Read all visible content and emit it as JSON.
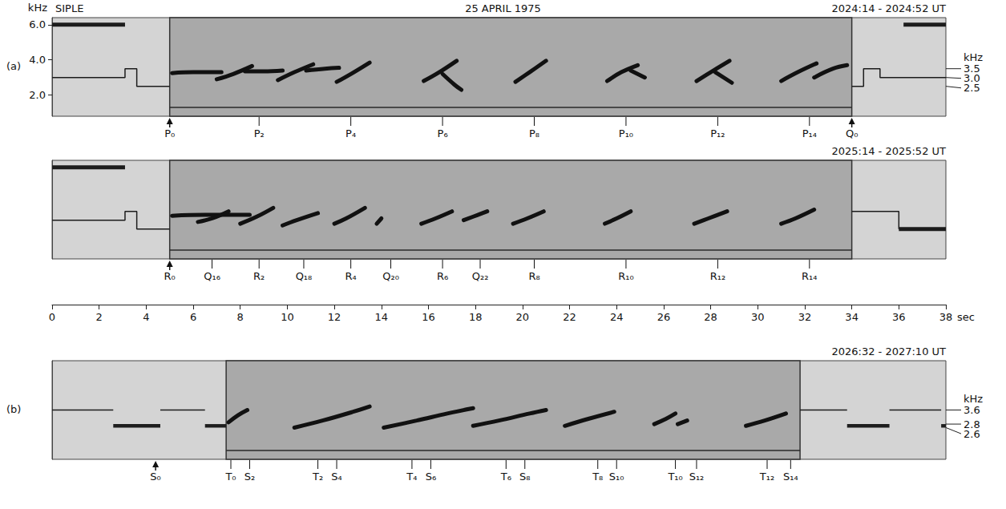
{
  "chart_data": [
    {
      "type": "spectrogram",
      "panel": "(a)",
      "station": "SIPLE",
      "date": "25 APRIL 1975",
      "title": "2024:14 - 2024:52 UT",
      "xlim": [
        0,
        38
      ],
      "ylim": [
        0.8,
        6.4
      ],
      "ylabel": "kHz",
      "tick_labels": "y",
      "yticks": [
        {
          "value": 2,
          "label": "2.0"
        },
        {
          "value": 4,
          "label": "4.0"
        },
        {
          "value": 6,
          "label": "6.0"
        }
      ],
      "freq_unit": "kHz",
      "freq_marks": [
        3.5,
        {
          "value": 3,
          "label": "3.0"
        },
        2.5
      ],
      "active": [
        5.0,
        34.0
      ],
      "floor_line": 1.3,
      "tones": [
        {
          "line_style": "thick",
          "points": [
            [
              0,
              6
            ],
            [
              3.1,
              6
            ]
          ]
        },
        {
          "line_style": "thick",
          "points": [
            [
              36.2,
              6
            ],
            [
              38,
              6
            ]
          ]
        },
        {
          "line_style": "thin",
          "points": [
            [
              0,
              3
            ],
            [
              3.1,
              3
            ],
            [
              3.1,
              3.5
            ],
            [
              3.6,
              3.5
            ],
            [
              3.6,
              2.5
            ],
            [
              5.0,
              2.5
            ]
          ]
        },
        {
          "line_style": "thin",
          "points": [
            [
              34.0,
              2.5
            ],
            [
              34.5,
              2.5
            ],
            [
              34.5,
              3.5
            ],
            [
              35.2,
              3.5
            ],
            [
              35.2,
              3
            ],
            [
              38,
              3
            ]
          ]
        }
      ],
      "bands": [],
      "emissions": [
        [
          [
            5.1,
            3.25
          ],
          [
            6.0,
            3.3
          ],
          [
            7.2,
            3.3
          ]
        ],
        [
          [
            7.0,
            2.9
          ],
          [
            7.7,
            3.2
          ],
          [
            8.5,
            3.65
          ]
        ],
        [
          [
            8.2,
            3.35
          ],
          [
            9.0,
            3.35
          ],
          [
            9.8,
            3.4
          ]
        ],
        [
          [
            9.6,
            2.85
          ],
          [
            10.3,
            3.3
          ],
          [
            11.1,
            3.75
          ]
        ],
        [
          [
            10.8,
            3.4
          ],
          [
            11.6,
            3.5
          ],
          [
            12.2,
            3.55
          ]
        ],
        [
          [
            12.1,
            2.75
          ],
          [
            12.7,
            3.2
          ],
          [
            13.5,
            3.85
          ]
        ],
        [
          [
            15.8,
            2.8
          ],
          [
            16.4,
            3.25
          ],
          [
            17.2,
            3.95
          ]
        ],
        [
          [
            16.6,
            3.2
          ],
          [
            17.1,
            2.6
          ],
          [
            17.4,
            2.3
          ]
        ],
        [
          [
            19.7,
            2.75
          ],
          [
            20.3,
            3.3
          ],
          [
            21.0,
            3.95
          ]
        ],
        [
          [
            23.6,
            2.8
          ],
          [
            24.2,
            3.3
          ],
          [
            24.9,
            3.7
          ]
        ],
        [
          [
            24.6,
            3.4
          ],
          [
            25.2,
            3.0
          ]
        ],
        [
          [
            27.4,
            2.8
          ],
          [
            28.0,
            3.3
          ],
          [
            28.8,
            3.95
          ]
        ],
        [
          [
            28.2,
            3.3
          ],
          [
            28.9,
            2.7
          ]
        ],
        [
          [
            31.0,
            2.8
          ],
          [
            31.7,
            3.3
          ],
          [
            32.5,
            3.8
          ]
        ],
        [
          [
            32.4,
            3.0
          ],
          [
            33.2,
            3.5
          ],
          [
            33.8,
            3.7
          ]
        ]
      ],
      "marks": [
        {
          "label": "P₀",
          "t": 5.0,
          "marker": "arrow"
        },
        {
          "label": "P₂",
          "t": 8.8,
          "marker": "tick"
        },
        {
          "label": "P₄",
          "t": 12.7,
          "marker": "tick"
        },
        {
          "label": "P₆",
          "t": 16.6,
          "marker": "tick"
        },
        {
          "label": "P₈",
          "t": 20.5,
          "marker": "tick"
        },
        {
          "label": "P₁₀",
          "t": 24.4,
          "marker": "tick"
        },
        {
          "label": "P₁₂",
          "t": 28.3,
          "marker": "tick"
        },
        {
          "label": "P₁₄",
          "t": 32.2,
          "marker": "tick"
        },
        {
          "label": "Q₀",
          "t": 34.0,
          "marker": "arrow"
        }
      ]
    },
    {
      "type": "spectrogram",
      "title": "2025:14 - 2025:52 UT",
      "xlim": [
        0,
        38
      ],
      "ylim": [
        0.8,
        6.4
      ],
      "tick_labels": false,
      "active": [
        5.0,
        34.0
      ],
      "floor_line": 1.3,
      "tones": [
        {
          "line_style": "thick",
          "points": [
            [
              0,
              6
            ],
            [
              3.1,
              6
            ]
          ]
        },
        {
          "line_style": "thin",
          "points": [
            [
              0,
              3
            ],
            [
              3.1,
              3
            ],
            [
              3.1,
              3.5
            ],
            [
              3.6,
              3.5
            ],
            [
              3.6,
              2.5
            ],
            [
              5.0,
              2.5
            ]
          ]
        },
        {
          "line_style": "thin",
          "points": [
            [
              34.0,
              3.5
            ],
            [
              36.0,
              3.5
            ],
            [
              36.0,
              2.5
            ]
          ]
        },
        {
          "line_style": "thick",
          "points": [
            [
              36.0,
              2.5
            ],
            [
              38,
              2.5
            ]
          ]
        }
      ],
      "bands": [],
      "emissions": [
        [
          [
            5.1,
            3.25
          ],
          [
            6.5,
            3.3
          ],
          [
            8.4,
            3.3
          ]
        ],
        [
          [
            6.2,
            2.9
          ],
          [
            6.8,
            3.1
          ],
          [
            7.5,
            3.5
          ]
        ],
        [
          [
            8.0,
            2.8
          ],
          [
            8.7,
            3.2
          ],
          [
            9.4,
            3.7
          ]
        ],
        [
          [
            9.8,
            2.7
          ],
          [
            10.4,
            3.0
          ],
          [
            11.3,
            3.4
          ]
        ],
        [
          [
            12.0,
            2.8
          ],
          [
            12.5,
            3.1
          ],
          [
            13.3,
            3.7
          ]
        ],
        [
          [
            13.8,
            2.8
          ],
          [
            14.0,
            3.1
          ]
        ],
        [
          [
            15.7,
            2.8
          ],
          [
            16.3,
            3.1
          ],
          [
            17.0,
            3.5
          ]
        ],
        [
          [
            17.5,
            3.0
          ],
          [
            18.1,
            3.3
          ],
          [
            18.5,
            3.5
          ]
        ],
        [
          [
            19.6,
            2.8
          ],
          [
            20.2,
            3.1
          ],
          [
            20.9,
            3.5
          ]
        ],
        [
          [
            23.5,
            2.8
          ],
          [
            24.0,
            3.1
          ],
          [
            24.6,
            3.5
          ]
        ],
        [
          [
            27.3,
            2.8
          ],
          [
            27.9,
            3.1
          ],
          [
            28.7,
            3.5
          ]
        ],
        [
          [
            31.0,
            2.8
          ],
          [
            31.6,
            3.1
          ],
          [
            32.4,
            3.6
          ]
        ]
      ],
      "marks": [
        {
          "label": "R₀",
          "t": 5.0,
          "marker": "arrow"
        },
        {
          "label": "Q₁₆",
          "t": 6.8,
          "marker": "tick"
        },
        {
          "label": "R₂",
          "t": 8.8,
          "marker": "tick"
        },
        {
          "label": "Q₁₈",
          "t": 10.7,
          "marker": "tick"
        },
        {
          "label": "R₄",
          "t": 12.7,
          "marker": "tick"
        },
        {
          "label": "Q₂₀",
          "t": 14.4,
          "marker": "tick"
        },
        {
          "label": "R₆",
          "t": 16.6,
          "marker": "tick"
        },
        {
          "label": "Q₂₂",
          "t": 18.2,
          "marker": "tick"
        },
        {
          "label": "R₈",
          "t": 20.5,
          "marker": "tick"
        },
        {
          "label": "R₁₀",
          "t": 24.4,
          "marker": "tick"
        },
        {
          "label": "R₁₂",
          "t": 28.3,
          "marker": "tick"
        },
        {
          "label": "R₁₄",
          "t": 32.2,
          "marker": "tick"
        }
      ]
    },
    {
      "type": "time_axis",
      "xlim": [
        0,
        38
      ],
      "tick_labels": "x",
      "xticks": [
        0,
        2,
        4,
        6,
        8,
        10,
        12,
        14,
        16,
        18,
        20,
        22,
        24,
        26,
        28,
        30,
        32,
        34,
        36,
        38
      ],
      "xlabel": "sec"
    },
    {
      "type": "spectrogram",
      "panel": "(b)",
      "title": "2026:32 - 2027:10 UT",
      "xlim": [
        0,
        38
      ],
      "ylim": [
        0.8,
        6.4
      ],
      "tick_labels": false,
      "freq_unit": "kHz",
      "freq_marks": [
        3.6,
        2.8,
        2.6
      ],
      "active": [
        7.4,
        31.8
      ],
      "floor_line": 1.3,
      "tones": [
        {
          "line_style": "thin",
          "points": [
            [
              0,
              3.6
            ],
            [
              2.6,
              3.6
            ]
          ]
        },
        {
          "line_style": "thin",
          "points": [
            [
              4.6,
              3.6
            ],
            [
              6.5,
              3.6
            ]
          ]
        },
        {
          "line_style": "thin",
          "points": [
            [
              31.8,
              3.6
            ],
            [
              33.8,
              3.6
            ]
          ]
        },
        {
          "line_style": "thin",
          "points": [
            [
              35.6,
              3.6
            ],
            [
              37.8,
              3.6
            ]
          ]
        }
      ],
      "bands": [
        {
          "t": [
            2.6,
            4.6
          ],
          "f": [
            2.6,
            2.8
          ]
        },
        {
          "t": [
            6.5,
            7.4
          ],
          "f": [
            2.6,
            2.8
          ]
        },
        {
          "t": [
            33.8,
            35.6
          ],
          "f": [
            2.6,
            2.8
          ]
        },
        {
          "t": [
            37.8,
            38
          ],
          "f": [
            2.6,
            2.8
          ]
        }
      ],
      "emissions": [
        [
          [
            7.5,
            2.9
          ],
          [
            7.9,
            3.3
          ],
          [
            8.3,
            3.6
          ]
        ],
        [
          [
            10.3,
            2.6
          ],
          [
            11.5,
            3.0
          ],
          [
            12.8,
            3.5
          ],
          [
            13.5,
            3.8
          ]
        ],
        [
          [
            14.1,
            2.6
          ],
          [
            15.5,
            3.0
          ],
          [
            16.8,
            3.4
          ],
          [
            17.9,
            3.7
          ]
        ],
        [
          [
            17.9,
            2.7
          ],
          [
            19.0,
            3.0
          ],
          [
            20.3,
            3.4
          ],
          [
            21.0,
            3.6
          ]
        ],
        [
          [
            21.8,
            2.7
          ],
          [
            22.8,
            3.1
          ],
          [
            23.9,
            3.5
          ]
        ],
        [
          [
            25.6,
            2.8
          ],
          [
            26.1,
            3.1
          ],
          [
            26.5,
            3.4
          ]
        ],
        [
          [
            26.6,
            2.8
          ],
          [
            27.0,
            3.0
          ]
        ],
        [
          [
            29.5,
            2.7
          ],
          [
            30.3,
            3.0
          ],
          [
            31.2,
            3.4
          ]
        ]
      ],
      "marks": [
        {
          "label": "S₀",
          "t": 4.4,
          "marker": "arrow"
        },
        {
          "label": "T₀",
          "t": 7.6,
          "marker": "tick"
        },
        {
          "label": "S₂",
          "t": 8.4,
          "marker": "tick"
        },
        {
          "label": "T₂",
          "t": 11.3,
          "marker": "tick"
        },
        {
          "label": "S₄",
          "t": 12.1,
          "marker": "tick"
        },
        {
          "label": "T₄",
          "t": 15.3,
          "marker": "tick"
        },
        {
          "label": "S₆",
          "t": 16.1,
          "marker": "tick"
        },
        {
          "label": "T₆",
          "t": 19.3,
          "marker": "tick"
        },
        {
          "label": "S₈",
          "t": 20.1,
          "marker": "tick"
        },
        {
          "label": "T₈",
          "t": 23.2,
          "marker": "tick"
        },
        {
          "label": "S₁₀",
          "t": 24.0,
          "marker": "tick"
        },
        {
          "label": "T₁₀",
          "t": 26.5,
          "marker": "tick"
        },
        {
          "label": "S₁₂",
          "t": 27.4,
          "marker": "tick"
        },
        {
          "label": "T₁₂",
          "t": 30.4,
          "marker": "tick"
        },
        {
          "label": "S₁₄",
          "t": 31.4,
          "marker": "tick"
        }
      ]
    }
  ]
}
